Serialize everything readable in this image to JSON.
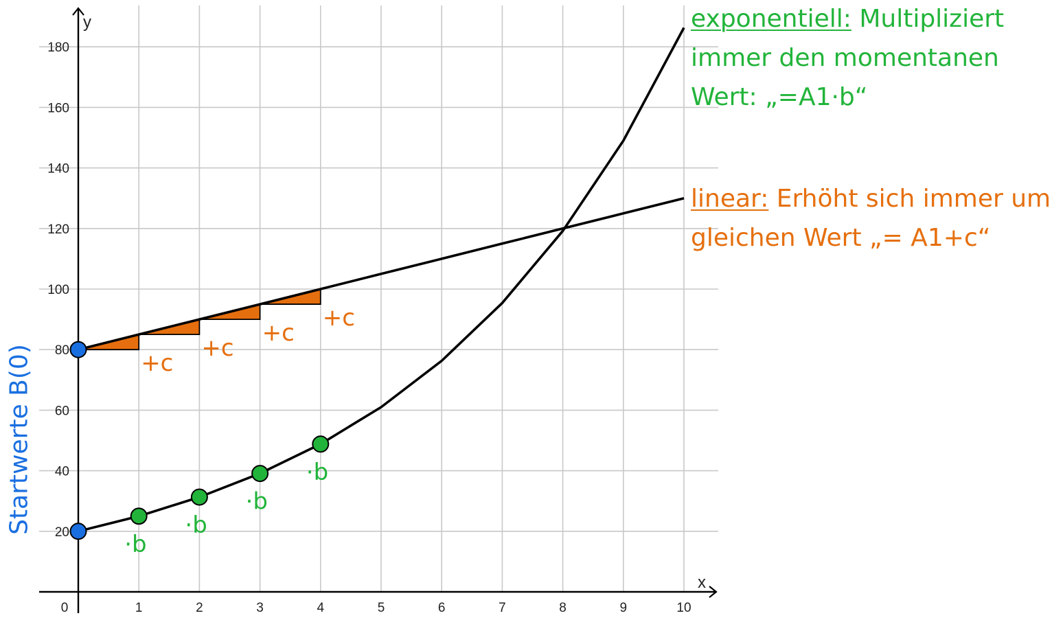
{
  "colors": {
    "green": "#22b43a",
    "orange": "#e56f0e",
    "blue": "#1a6fe0",
    "curve": "#000000",
    "grid": "#c8c8c8"
  },
  "annotations": {
    "exponential": {
      "keyword": "exponentiell:",
      "text": " Multipliziert immer den momentanen Wert: „=A1·b“"
    },
    "linear": {
      "keyword": "linear:",
      "text": " Erhöht sich immer um gleichen Wert „= A1+c“"
    },
    "start_values": "Startwerte B(0)",
    "step_add": "+c",
    "step_mul": "·b"
  },
  "chart_data": {
    "type": "line",
    "title": "",
    "xlabel": "x",
    "ylabel": "y",
    "xlim": [
      0,
      10
    ],
    "ylim": [
      0,
      190
    ],
    "grid": true,
    "x_ticks": [
      0,
      1,
      2,
      3,
      4,
      5,
      6,
      7,
      8,
      9,
      10
    ],
    "y_ticks": [
      20,
      40,
      60,
      80,
      100,
      120,
      140,
      160,
      180
    ],
    "series": [
      {
        "color": "#000000",
        "x": [
          0,
          1,
          2,
          3,
          4,
          5,
          6,
          7,
          8,
          9,
          10
        ],
        "y": [
          80,
          85,
          90,
          95,
          100,
          105,
          110,
          115,
          120,
          125,
          130
        ]
      },
      {
        "color": "#000000",
        "x": [
          0,
          1,
          2,
          3,
          4,
          5,
          6,
          7,
          8,
          9,
          10
        ],
        "y": [
          20,
          25.0,
          31.3,
          39.1,
          48.8,
          61.0,
          76.3,
          95.4,
          119.2,
          149.0,
          186.3
        ]
      }
    ],
    "start_points": [
      {
        "x": 0,
        "y": 80,
        "color": "#1a6fe0"
      },
      {
        "x": 0,
        "y": 20,
        "color": "#1a6fe0"
      }
    ],
    "highlight_points": [
      {
        "x": 1,
        "y": 25.0,
        "color": "#22b43a"
      },
      {
        "x": 2,
        "y": 31.3,
        "color": "#22b43a"
      },
      {
        "x": 3,
        "y": 39.1,
        "color": "#22b43a"
      },
      {
        "x": 4,
        "y": 48.8,
        "color": "#22b43a"
      }
    ],
    "step_triangles": [
      {
        "x0": 0,
        "x1": 1,
        "y0": 80,
        "y1": 85
      },
      {
        "x0": 1,
        "x1": 2,
        "y0": 85,
        "y1": 90
      },
      {
        "x0": 2,
        "x1": 3,
        "y0": 90,
        "y1": 95
      },
      {
        "x0": 3,
        "x1": 4,
        "y0": 95,
        "y1": 100
      }
    ],
    "step_add_labels_at": [
      {
        "x": 1,
        "y": 80
      },
      {
        "x": 2,
        "y": 85
      },
      {
        "x": 3,
        "y": 90
      },
      {
        "x": 4,
        "y": 95
      }
    ],
    "step_mul_labels_at": [
      {
        "x": 1,
        "y": 25.0
      },
      {
        "x": 2,
        "y": 31.3
      },
      {
        "x": 3,
        "y": 39.1
      },
      {
        "x": 4,
        "y": 48.8
      }
    ]
  }
}
